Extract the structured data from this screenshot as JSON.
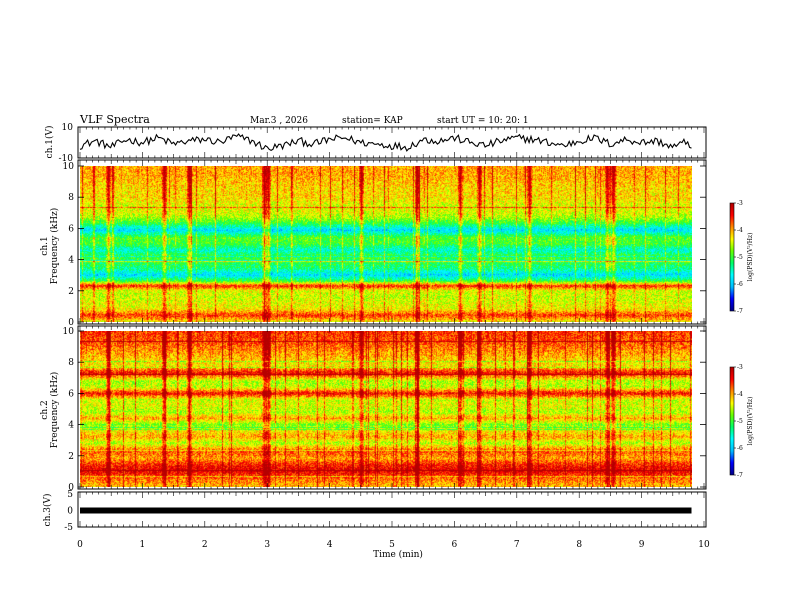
{
  "header": {
    "title": "VLF Spectra",
    "date": "Mar.3 , 2026",
    "station": "station= KAP",
    "start": "start UT = 10: 20: 1"
  },
  "colors": {
    "spectrogram_scale": [
      "#00008b",
      "#0000ff",
      "#00bfff",
      "#00ffff",
      "#00ff66",
      "#66ff00",
      "#ffff00",
      "#ff8c00",
      "#ff0000",
      "#b40000"
    ],
    "trace": "#000000",
    "background": "#ffffff"
  },
  "chart_data": [
    {
      "name": "ch1-waveform",
      "type": "line",
      "ylabel": "ch.1(V)",
      "ylim": [
        -10,
        10
      ],
      "yticks": [
        10,
        -10
      ],
      "xlim": [
        0,
        10
      ],
      "x_minutes": [
        0,
        0.25,
        0.5,
        0.75,
        1,
        1.25,
        1.5,
        1.75,
        2,
        2.25,
        2.5,
        2.75,
        3,
        3.25,
        3.5,
        3.75,
        4,
        4.25,
        4.5,
        4.75,
        5,
        5.25,
        5.5,
        5.75,
        6,
        6.25,
        6.5,
        6.75,
        7,
        7.25,
        7.5,
        7.75,
        8,
        8.25,
        8.5,
        8.75,
        9,
        9.25,
        9.5,
        9.75,
        9.8
      ],
      "y_volts": [
        -2,
        1,
        -3,
        2,
        0,
        3,
        -1,
        1,
        2,
        0,
        4,
        1,
        -4,
        -2,
        1,
        -1,
        2,
        3,
        0,
        -1,
        -2,
        -3,
        2,
        1,
        3,
        0,
        -2,
        1,
        3,
        2,
        0,
        -2,
        1,
        3,
        -1,
        2,
        0,
        1,
        -3,
        1,
        -4
      ]
    },
    {
      "name": "ch1-spectrogram",
      "type": "heatmap",
      "ylabel": "ch.1",
      "ylabel2": "Frequency (kHz)",
      "ylim": [
        0,
        10
      ],
      "yticks": [
        0,
        2,
        4,
        6,
        8,
        10
      ],
      "xlim": [
        0,
        10
      ],
      "colorbar": {
        "min": -7,
        "max": -3,
        "ticks": [
          -3,
          -4,
          -5,
          -6,
          -7
        ],
        "label": "log(PSD)(V²/Hz)"
      },
      "band_profile": [
        {
          "freq_khz": 0.0,
          "log_psd": -4.3
        },
        {
          "freq_khz": 0.4,
          "log_psd": -3.6
        },
        {
          "freq_khz": 0.8,
          "log_psd": -4.3
        },
        {
          "freq_khz": 1.2,
          "log_psd": -4.4
        },
        {
          "freq_khz": 1.6,
          "log_psd": -4.5
        },
        {
          "freq_khz": 2.0,
          "log_psd": -4.4
        },
        {
          "freq_khz": 2.3,
          "log_psd": -3.5
        },
        {
          "freq_khz": 2.6,
          "log_psd": -5.0
        },
        {
          "freq_khz": 3.0,
          "log_psd": -5.9
        },
        {
          "freq_khz": 3.4,
          "log_psd": -5.3
        },
        {
          "freq_khz": 3.8,
          "log_psd": -5.1
        },
        {
          "freq_khz": 4.2,
          "log_psd": -5.0
        },
        {
          "freq_khz": 4.6,
          "log_psd": -5.6
        },
        {
          "freq_khz": 5.0,
          "log_psd": -5.0
        },
        {
          "freq_khz": 5.4,
          "log_psd": -4.9
        },
        {
          "freq_khz": 5.9,
          "log_psd": -5.9
        },
        {
          "freq_khz": 6.3,
          "log_psd": -5.1
        },
        {
          "freq_khz": 6.7,
          "log_psd": -4.6
        },
        {
          "freq_khz": 7.1,
          "log_psd": -4.4
        },
        {
          "freq_khz": 7.5,
          "log_psd": -4.4
        },
        {
          "freq_khz": 8.0,
          "log_psd": -4.2
        },
        {
          "freq_khz": 8.5,
          "log_psd": -4.2
        },
        {
          "freq_khz": 9.0,
          "log_psd": -4.1
        },
        {
          "freq_khz": 9.5,
          "log_psd": -4.0
        },
        {
          "freq_khz": 10.0,
          "log_psd": -4.0
        }
      ],
      "impulse_times_min": [
        0.45,
        1.35,
        1.75,
        2.95,
        3.02,
        4.5,
        5.4,
        6.1,
        6.4,
        7.2,
        8.45,
        8.55
      ]
    },
    {
      "name": "ch2-spectrogram",
      "type": "heatmap",
      "ylabel": "ch.2",
      "ylabel2": "Frequency (kHz)",
      "ylim": [
        0,
        10
      ],
      "yticks": [
        0,
        2,
        4,
        6,
        8,
        10
      ],
      "xlim": [
        0,
        10
      ],
      "colorbar": {
        "min": -7,
        "max": -3,
        "ticks": [
          -3,
          -4,
          -5,
          -6,
          -7
        ],
        "label": "log(PSD)(V²/Hz)"
      },
      "band_profile": [
        {
          "freq_khz": 0.0,
          "log_psd": -4.1
        },
        {
          "freq_khz": 0.5,
          "log_psd": -3.8
        },
        {
          "freq_khz": 1.0,
          "log_psd": -3.3
        },
        {
          "freq_khz": 1.4,
          "log_psd": -3.5
        },
        {
          "freq_khz": 1.8,
          "log_psd": -4.0
        },
        {
          "freq_khz": 2.3,
          "log_psd": -3.7
        },
        {
          "freq_khz": 2.8,
          "log_psd": -4.6
        },
        {
          "freq_khz": 3.2,
          "log_psd": -4.0
        },
        {
          "freq_khz": 3.6,
          "log_psd": -4.3
        },
        {
          "freq_khz": 4.0,
          "log_psd": -4.8
        },
        {
          "freq_khz": 4.4,
          "log_psd": -4.0
        },
        {
          "freq_khz": 4.8,
          "log_psd": -4.6
        },
        {
          "freq_khz": 5.2,
          "log_psd": -4.4
        },
        {
          "freq_khz": 5.6,
          "log_psd": -4.5
        },
        {
          "freq_khz": 6.0,
          "log_psd": -3.4
        },
        {
          "freq_khz": 6.4,
          "log_psd": -4.5
        },
        {
          "freq_khz": 6.8,
          "log_psd": -4.6
        },
        {
          "freq_khz": 7.3,
          "log_psd": -3.4
        },
        {
          "freq_khz": 7.8,
          "log_psd": -4.3
        },
        {
          "freq_khz": 8.3,
          "log_psd": -4.1
        },
        {
          "freq_khz": 8.8,
          "log_psd": -3.9
        },
        {
          "freq_khz": 9.3,
          "log_psd": -3.7
        },
        {
          "freq_khz": 10.0,
          "log_psd": -3.6
        }
      ],
      "impulse_times_min": [
        0.45,
        1.35,
        1.75,
        2.95,
        3.02,
        4.5,
        5.4,
        6.1,
        6.4,
        7.2,
        8.45,
        8.55
      ]
    },
    {
      "name": "ch3-waveform",
      "type": "line",
      "ylabel": "ch.3(V)",
      "ylim": [
        -5,
        5
      ],
      "yticks": [
        5,
        0,
        -5
      ],
      "xlim": [
        0,
        10
      ],
      "x_minutes": [
        0,
        9.8
      ],
      "y_volts": [
        0,
        0
      ]
    }
  ],
  "xaxis": {
    "label": "Time (min)",
    "min": 0,
    "max": 10,
    "ticks": [
      "0",
      "1",
      "2",
      "3",
      "4",
      "5",
      "6",
      "7",
      "8",
      "9",
      "10"
    ]
  }
}
